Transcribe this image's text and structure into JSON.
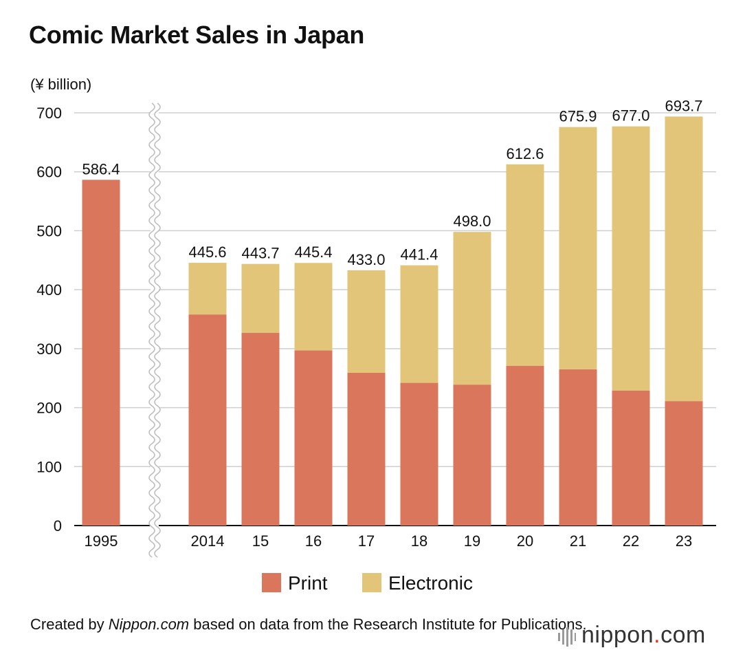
{
  "chart_data": {
    "type": "bar",
    "stacked": true,
    "title": "Comic Market Sales in Japan",
    "unit_label": "(¥ billion)",
    "categories": [
      "1995",
      "2014",
      "15",
      "16",
      "17",
      "18",
      "19",
      "20",
      "21",
      "22",
      "23"
    ],
    "series": [
      {
        "name": "Print",
        "color": "#d9765b",
        "values": [
          586.4,
          358,
          327,
          297,
          259,
          242,
          239,
          271,
          265,
          229,
          211
        ]
      },
      {
        "name": "Electronic",
        "color": "#e2c578",
        "values": [
          0,
          87.6,
          116.7,
          148.4,
          174.0,
          199.4,
          259.0,
          341.6,
          410.9,
          448.0,
          482.7
        ]
      }
    ],
    "totals": [
      "586.4",
      "445.6",
      "443.7",
      "445.4",
      "433.0",
      "441.4",
      "498.0",
      "612.6",
      "675.9",
      "677.0",
      "693.7"
    ],
    "ylim": [
      0,
      700
    ],
    "yticks": [
      "0",
      "100",
      "200",
      "300",
      "400",
      "500",
      "600",
      "700"
    ],
    "grid": true,
    "axis_break_after": "1995",
    "legend_position": "bottom-center"
  },
  "source": {
    "prefix": "Created by ",
    "site": "Nippon.com",
    "suffix": " based on data from the Research Institute for Publications."
  },
  "brand": {
    "name": "nippon",
    "dot": ".",
    "tld": "com",
    "icon": "bars-logo-icon"
  }
}
